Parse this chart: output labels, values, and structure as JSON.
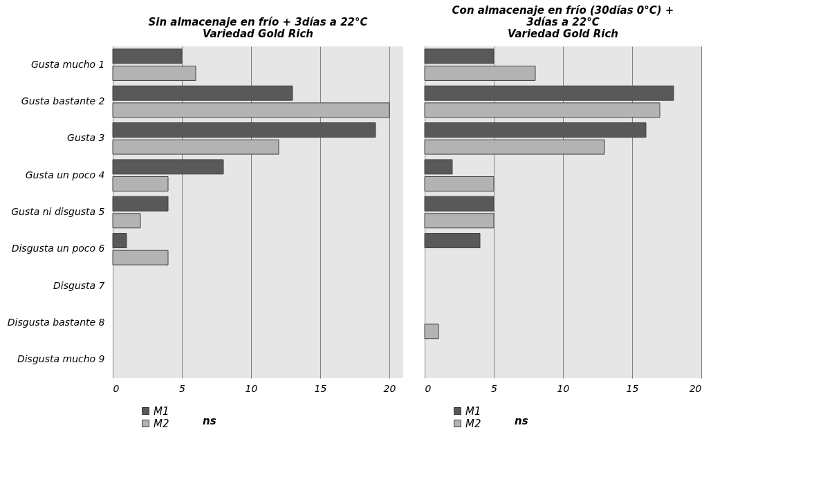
{
  "chart_data": [
    {
      "type": "bar",
      "orientation": "horizontal",
      "title": [
        "Sin almacenaje en frío + 3días a 22°C",
        "Variedad Gold Rich"
      ],
      "categories": [
        "Gusta mucho 1",
        "Gusta bastante 2",
        "Gusta 3",
        "Gusta un poco 4",
        "Gusta ni disgusta 5",
        "Disgusta un poco 6",
        "Disgusta 7",
        "Disgusta bastante 8",
        "Disgusta mucho 9"
      ],
      "series": [
        {
          "name": "M1",
          "color": "#595959",
          "values": [
            5,
            13,
            19,
            8,
            4,
            1,
            null,
            null,
            null
          ]
        },
        {
          "name": "M2",
          "color": "#b3b3b3",
          "values": [
            6,
            20,
            12,
            4,
            2,
            4,
            null,
            null,
            null
          ]
        }
      ],
      "xlim": [
        0,
        21
      ],
      "xticks": [
        0,
        5,
        10,
        15,
        20
      ],
      "grid": "x",
      "legend": "bottom left",
      "annotations": [
        "ns"
      ]
    },
    {
      "type": "bar",
      "orientation": "horizontal",
      "title": [
        "Con almacenaje en frío (30días 0°C) +",
        "3días a 22°C",
        "Variedad Gold Rich"
      ],
      "categories": [
        "Gusta mucho 1",
        "Gusta bastante 2",
        "Gusta 3",
        "Gusta un poco 4",
        "Gusta ni disgusta 5",
        "Disgusta un poco 6",
        "Disgusta 7",
        "Disgusta bastante 8",
        "Disgusta mucho 9"
      ],
      "series": [
        {
          "name": "M1",
          "color": "#595959",
          "values": [
            5,
            18,
            16,
            2,
            5,
            4,
            null,
            null,
            null
          ]
        },
        {
          "name": "M2",
          "color": "#b3b3b3",
          "values": [
            8,
            17,
            13,
            5,
            5,
            null,
            null,
            1,
            null
          ]
        }
      ],
      "xlim": [
        0,
        20
      ],
      "xticks": [
        0,
        5,
        10,
        15,
        20
      ],
      "grid": "x",
      "legend": "bottom left",
      "tick_labels": "x",
      "annotations": [
        "ns"
      ]
    }
  ]
}
